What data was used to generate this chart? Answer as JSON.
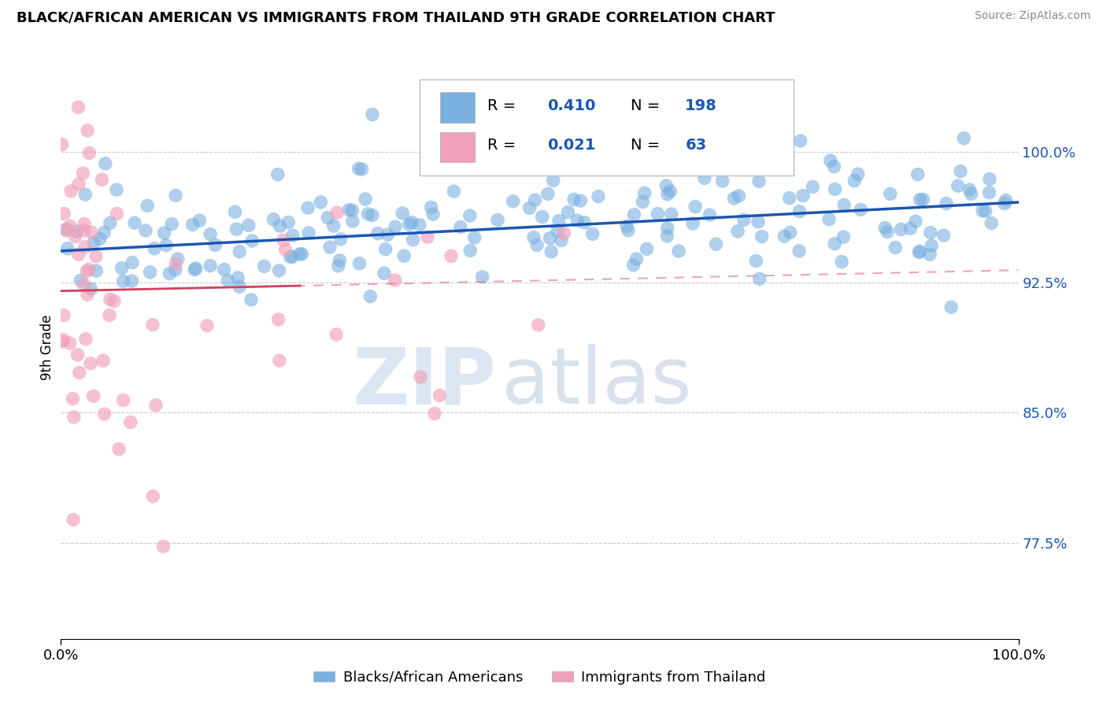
{
  "title": "BLACK/AFRICAN AMERICAN VS IMMIGRANTS FROM THAILAND 9TH GRADE CORRELATION CHART",
  "source_text": "Source: ZipAtlas.com",
  "ylabel": "9th Grade",
  "y_tick_labels": [
    "77.5%",
    "85.0%",
    "92.5%",
    "100.0%"
  ],
  "y_tick_values": [
    0.775,
    0.85,
    0.925,
    1.0
  ],
  "x_range": [
    0.0,
    1.0
  ],
  "y_range": [
    0.72,
    1.055
  ],
  "blue_R": 0.41,
  "blue_N": 198,
  "pink_R": 0.021,
  "pink_N": 63,
  "blue_color": "#7ab0e0",
  "blue_line_color": "#1a56b0",
  "pink_color": "#f0a0b8",
  "pink_line_color": "#d04060",
  "pink_dash_color": "#e08090",
  "watermark_ZIP_color": "#c0d0e8",
  "watermark_atlas_color": "#a0b8d0",
  "legend_label_blue": "Blacks/African Americans",
  "legend_label_pink": "Immigrants from Thailand",
  "blue_seed": 42,
  "pink_seed": 7,
  "blue_intercept": 0.943,
  "blue_slope": 0.028,
  "pink_intercept": 0.92,
  "pink_slope": 0.012
}
